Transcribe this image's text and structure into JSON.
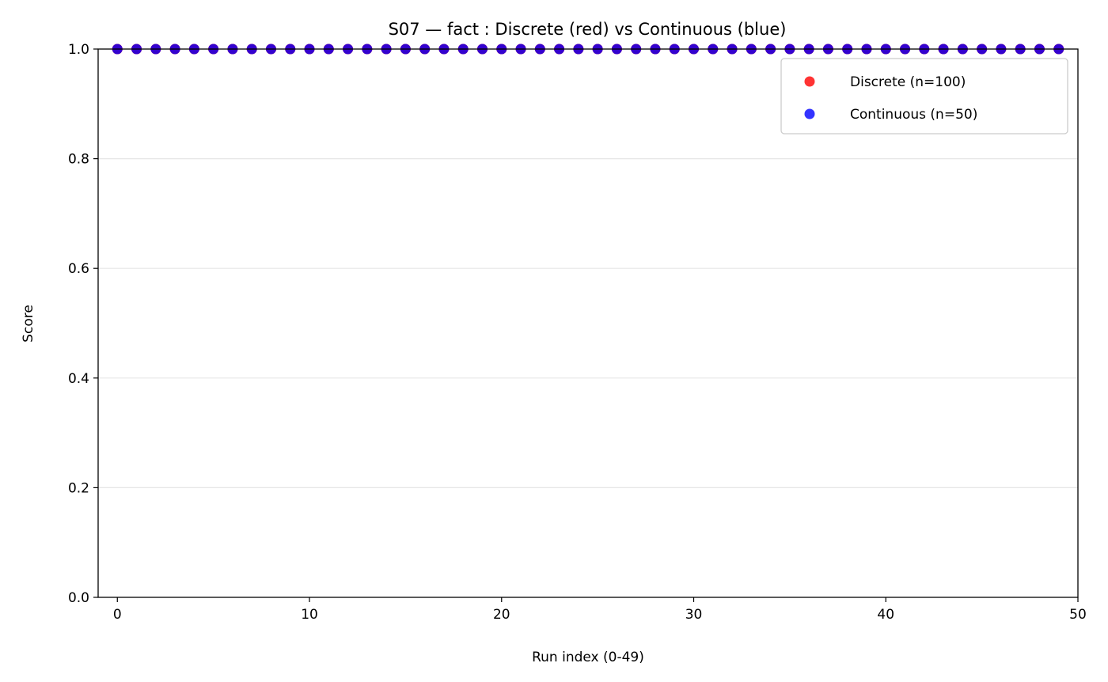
{
  "chart_data": {
    "type": "scatter",
    "title": "S07 — fact : Discrete (red) vs Continuous (blue)",
    "xlabel": "Run index (0-49)",
    "ylabel": "Score",
    "xlim": [
      -1,
      50
    ],
    "ylim": [
      0,
      1
    ],
    "xticks": [
      0,
      10,
      20,
      30,
      40,
      50
    ],
    "yticks": [
      0.0,
      0.2,
      0.4,
      0.6,
      0.8,
      1.0
    ],
    "xtick_labels": [
      "0",
      "10",
      "20",
      "30",
      "40",
      "50"
    ],
    "ytick_labels": [
      "0.0",
      "0.2",
      "0.4",
      "0.6",
      "0.8",
      "1.0"
    ],
    "grid": "horizontal",
    "legend_position": "top-right",
    "series": [
      {
        "name": "Discrete (n=100)",
        "color": "#ff0000",
        "x": [
          0,
          0,
          1,
          1,
          2,
          2,
          3,
          3,
          4,
          4,
          5,
          5,
          6,
          6,
          7,
          7,
          8,
          8,
          9,
          9,
          10,
          10,
          11,
          11,
          12,
          12,
          13,
          13,
          14,
          14,
          15,
          15,
          16,
          16,
          17,
          17,
          18,
          18,
          19,
          19,
          20,
          20,
          21,
          21,
          22,
          22,
          23,
          23,
          24,
          24,
          25,
          25,
          26,
          26,
          27,
          27,
          28,
          28,
          29,
          29,
          30,
          30,
          31,
          31,
          32,
          32,
          33,
          33,
          34,
          34,
          35,
          35,
          36,
          36,
          37,
          37,
          38,
          38,
          39,
          39,
          40,
          40,
          41,
          41,
          42,
          42,
          43,
          43,
          44,
          44,
          45,
          45,
          46,
          46,
          47,
          47,
          48,
          48,
          49,
          49
        ],
        "y": [
          1,
          1,
          1,
          1,
          1,
          1,
          1,
          1,
          1,
          1,
          1,
          1,
          1,
          1,
          1,
          1,
          1,
          1,
          1,
          1,
          1,
          1,
          1,
          1,
          1,
          1,
          1,
          1,
          1,
          1,
          1,
          1,
          1,
          1,
          1,
          1,
          1,
          1,
          1,
          1,
          1,
          1,
          1,
          1,
          1,
          1,
          1,
          1,
          1,
          1,
          1,
          1,
          1,
          1,
          1,
          1,
          1,
          1,
          1,
          1,
          1,
          1,
          1,
          1,
          1,
          1,
          1,
          1,
          1,
          1,
          1,
          1,
          1,
          1,
          1,
          1,
          1,
          1,
          1,
          1,
          1,
          1,
          1,
          1,
          1,
          1,
          1,
          1,
          1,
          1,
          1,
          1,
          1,
          1,
          1,
          1,
          1,
          1,
          1,
          1
        ]
      },
      {
        "name": "Continuous (n=50)",
        "color": "#0000ff",
        "x": [
          0,
          1,
          2,
          3,
          4,
          5,
          6,
          7,
          8,
          9,
          10,
          11,
          12,
          13,
          14,
          15,
          16,
          17,
          18,
          19,
          20,
          21,
          22,
          23,
          24,
          25,
          26,
          27,
          28,
          29,
          30,
          31,
          32,
          33,
          34,
          35,
          36,
          37,
          38,
          39,
          40,
          41,
          42,
          43,
          44,
          45,
          46,
          47,
          48,
          49
        ],
        "y": [
          1,
          1,
          1,
          1,
          1,
          1,
          1,
          1,
          1,
          1,
          1,
          1,
          1,
          1,
          1,
          1,
          1,
          1,
          1,
          1,
          1,
          1,
          1,
          1,
          1,
          1,
          1,
          1,
          1,
          1,
          1,
          1,
          1,
          1,
          1,
          1,
          1,
          1,
          1,
          1,
          1,
          1,
          1,
          1,
          1,
          1,
          1,
          1,
          1,
          1
        ]
      }
    ]
  }
}
